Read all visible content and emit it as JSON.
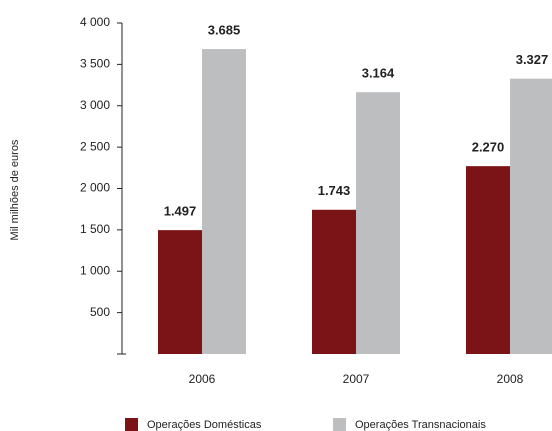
{
  "chart_data": {
    "type": "bar",
    "y_label": "Mil milhões de euros",
    "categories": [
      "2006",
      "2007",
      "2008"
    ],
    "series": [
      {
        "name": "Operações Domésticas",
        "color": "#7b1416",
        "values": [
          1497,
          1743,
          2270
        ],
        "value_labels": [
          "1.497",
          "1.743",
          "2.270"
        ]
      },
      {
        "name": "Operações Transnacionais",
        "color": "#bdbec0",
        "values": [
          3685,
          3164,
          3327
        ],
        "value_labels": [
          "3.685",
          "3.164",
          "3.327"
        ]
      }
    ],
    "ylim": [
      0,
      4000
    ],
    "yticks": [
      {
        "value": 500,
        "label": "500"
      },
      {
        "value": 1000,
        "label": "1 000"
      },
      {
        "value": 1500,
        "label": "1 500"
      },
      {
        "value": 2000,
        "label": "2 000"
      },
      {
        "value": 2500,
        "label": "2 500"
      },
      {
        "value": 3000,
        "label": "3 000"
      },
      {
        "value": 3500,
        "label": "3 500"
      },
      {
        "value": 4000,
        "label": "4 000"
      }
    ],
    "grid": false
  }
}
